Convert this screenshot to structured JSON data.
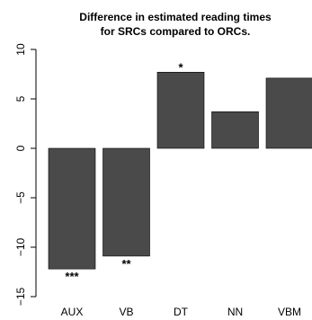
{
  "chart_data": {
    "type": "bar",
    "title": "Difference in estimated reading times",
    "subtitle": "for SRCs compared to ORCs.",
    "categories": [
      "AUX",
      "VB",
      "DT",
      "NN",
      "VBM"
    ],
    "values": [
      -12.2,
      -10.9,
      7.7,
      3.7,
      7.1
    ],
    "significance": [
      "***",
      "**",
      "*",
      "",
      ""
    ],
    "ylim": [
      -15,
      10
    ],
    "yticks": [
      -15,
      -10,
      -5,
      0,
      5,
      10
    ],
    "ytick_labels": [
      "−15",
      "−10",
      "−5",
      "0",
      "5",
      "10"
    ],
    "xlabel": "",
    "ylabel": "",
    "grid": false,
    "legend": false,
    "bar_color": "#4a4a4a"
  }
}
